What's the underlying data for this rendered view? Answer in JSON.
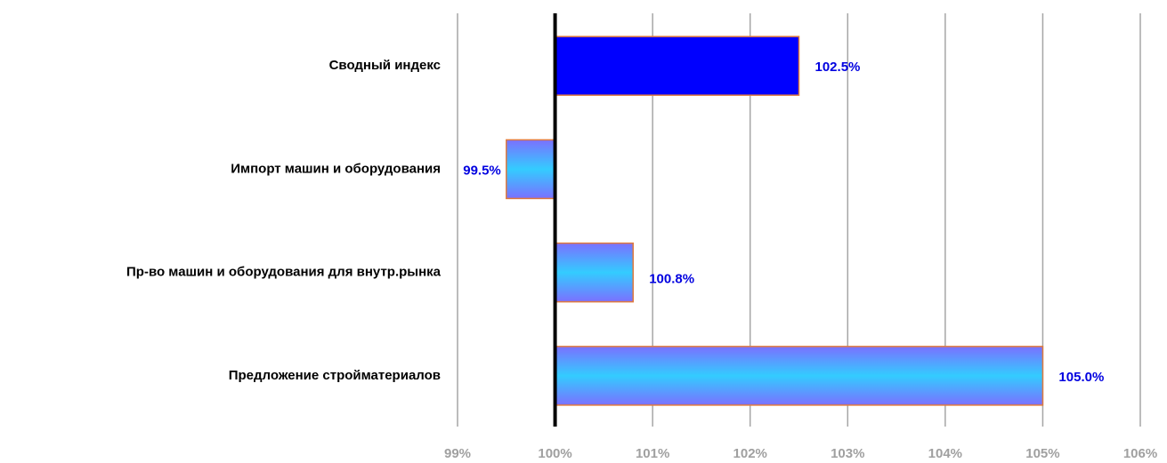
{
  "chart_data": {
    "type": "bar",
    "orientation": "horizontal",
    "categories": [
      "Сводный индекс",
      "Импорт машин и оборудования",
      "Пр-во машин и оборудования для внутр.рынка",
      "Предложение стройматериалов"
    ],
    "values": [
      102.5,
      99.5,
      100.8,
      105.0
    ],
    "value_labels": [
      "102.5%",
      "99.5%",
      "100.8%",
      "105.0%"
    ],
    "colors": [
      "#0000ff",
      "#33ccff",
      "#33ccff",
      "#33ccff"
    ],
    "base": 100,
    "xlim": [
      99,
      106
    ],
    "xticks": [
      {
        "value": 99,
        "label": "99%"
      },
      {
        "value": 100,
        "label": "100%"
      },
      {
        "value": 101,
        "label": "101%"
      },
      {
        "value": 102,
        "label": "102%"
      },
      {
        "value": 103,
        "label": "103%"
      },
      {
        "value": 104,
        "label": "104%"
      },
      {
        "value": 105,
        "label": "105%"
      },
      {
        "value": 106,
        "label": "106%"
      }
    ],
    "grid": true
  }
}
